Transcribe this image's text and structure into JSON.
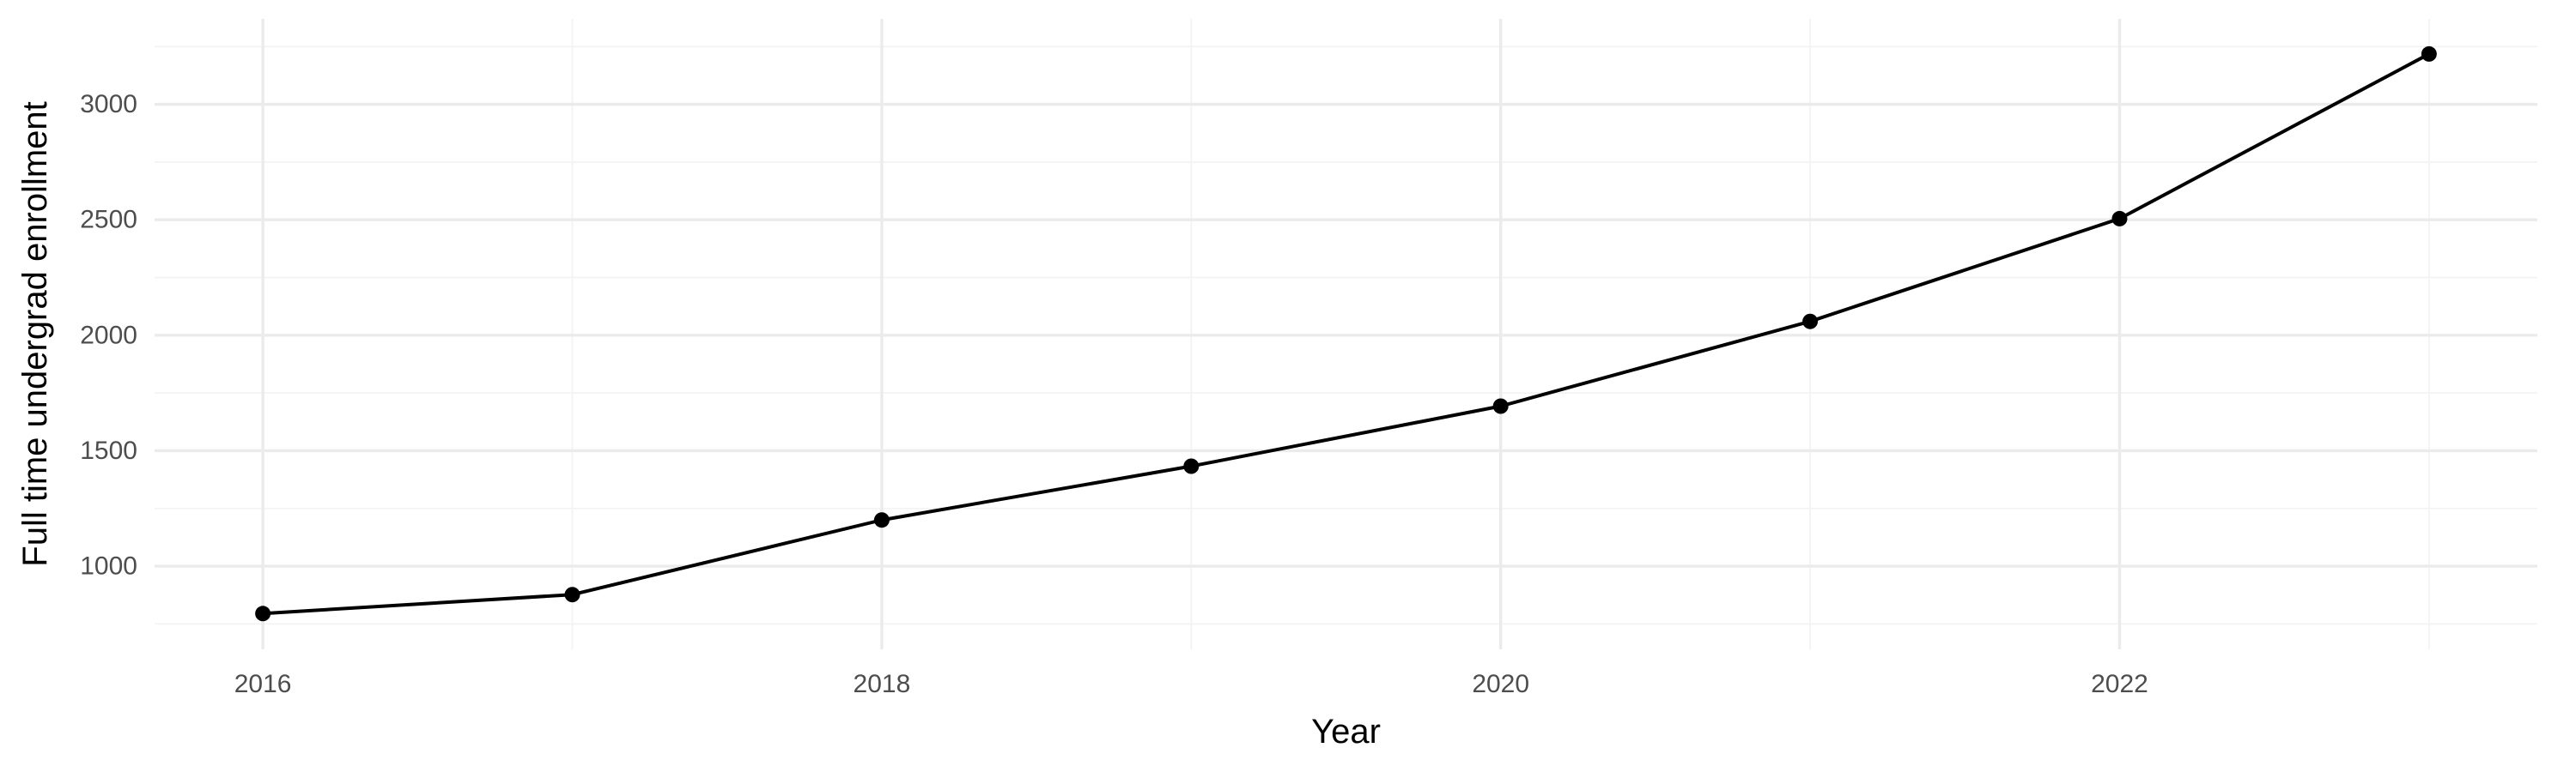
{
  "chart_data": {
    "type": "line",
    "title": "",
    "xlabel": "Year",
    "ylabel": "Full time undergrad enrollment",
    "x": [
      2016,
      2017,
      2018,
      2019,
      2020,
      2021,
      2022,
      2023
    ],
    "series": [
      {
        "values": [
          795,
          877,
          1200,
          1433,
          1693,
          2060,
          2505,
          3218
        ]
      }
    ],
    "xlim": [
      2015.65,
      2023.35
    ],
    "ylim": [
      640,
      3370
    ],
    "x_major_ticks": [
      2016,
      2018,
      2020,
      2022
    ],
    "x_tick_labels": [
      "2016",
      "2018",
      "2020",
      "2022"
    ],
    "x_minor_ticks": [
      2017,
      2019,
      2021,
      2023
    ],
    "y_major_ticks": [
      1000,
      1500,
      2000,
      2500,
      3000
    ],
    "y_tick_labels": [
      "1000",
      "1500",
      "2000",
      "2500",
      "3000"
    ],
    "y_minor_ticks": [
      750,
      1250,
      1750,
      2250,
      2750,
      3250
    ],
    "grid": true,
    "legend": "none",
    "colors": {
      "line": "#000000",
      "point": "#000000",
      "grid_major": "#ebebeb",
      "grid_minor": "#f3f3f3",
      "tick_text": "#4d4d4d",
      "axis_title": "#000000",
      "background": "#ffffff"
    }
  }
}
